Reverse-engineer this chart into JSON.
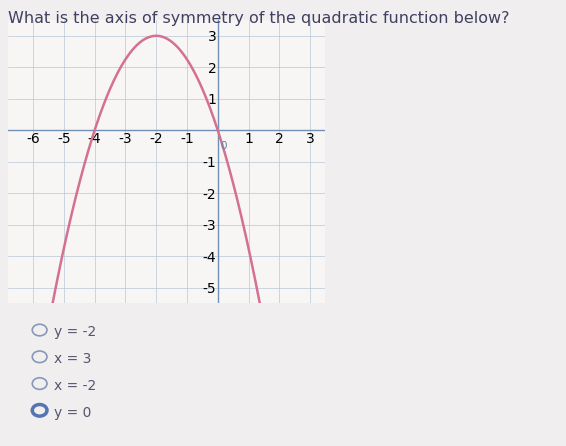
{
  "title": "What is the axis of symmetry of the quadratic function below?",
  "title_fontsize": 11.5,
  "xlim": [
    -6.8,
    3.5
  ],
  "ylim": [
    -5.5,
    3.5
  ],
  "xticks": [
    -6,
    -5,
    -4,
    -3,
    -2,
    -1,
    0,
    1,
    2,
    3
  ],
  "yticks": [
    -5,
    -4,
    -3,
    -2,
    -1,
    1,
    2,
    3
  ],
  "parabola_vertex_x": -2,
  "parabola_vertex_y": 3,
  "parabola_a": -0.75,
  "curve_color": "#d47090",
  "curve_linewidth": 1.8,
  "axis_color": "#7090b8",
  "grid_color": "#b8c8d8",
  "bg_color": "#f0eeee",
  "plot_bg": "#f8f6f4",
  "choices": [
    "y = -2",
    "x = 3",
    "x = -2",
    "y = 0"
  ],
  "selected_index": 3,
  "choice_fontsize": 10,
  "tick_fontsize": 7.5,
  "tick_color": "#6080a0"
}
